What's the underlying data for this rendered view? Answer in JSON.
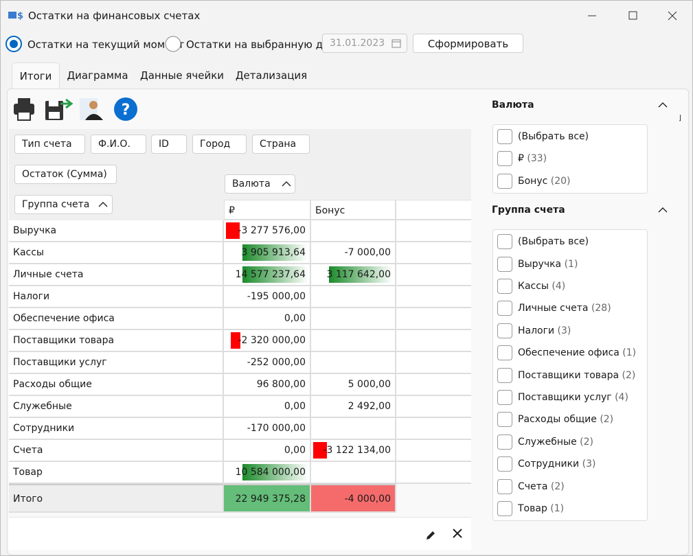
{
  "window": {
    "title": "Остатки на финансовых счетах"
  },
  "toolbar": {
    "mode_current": "Остатки на текущий момент",
    "mode_date": "Остатки на выбранную дату",
    "date": "31.01.2023",
    "button": "Сформировать"
  },
  "tabs": [
    "Итоги",
    "Диаграмма",
    "Данные ячейки",
    "Детализация"
  ],
  "pivot": {
    "filter_fields": [
      "Тип счета",
      "Ф.И.О.",
      "ID",
      "Город",
      "Страна"
    ],
    "data_field": "Остаток (Сумма)",
    "column_field": "Валюта",
    "row_field": "Группа счета",
    "columns": [
      "₽",
      "Бонус"
    ],
    "rows": [
      {
        "label": "Выручка",
        "cells": [
          "-3 277 576,00",
          null
        ]
      },
      {
        "label": "Кассы",
        "cells": [
          "3 905 913,64",
          "-7 000,00"
        ]
      },
      {
        "label": "Личные счета",
        "cells": [
          "14 577 237,64",
          "3 117 642,00"
        ]
      },
      {
        "label": "Налоги",
        "cells": [
          "-195 000,00",
          null
        ]
      },
      {
        "label": "Обеспечение офиса",
        "cells": [
          "0,00",
          null
        ]
      },
      {
        "label": "Поставщики товара",
        "cells": [
          "-2 320 000,00",
          null
        ]
      },
      {
        "label": "Поставщики услуг",
        "cells": [
          "-252 000,00",
          null
        ]
      },
      {
        "label": "Расходы общие",
        "cells": [
          "96 800,00",
          "5 000,00"
        ]
      },
      {
        "label": "Служебные",
        "cells": [
          "0,00",
          "2 492,00"
        ]
      },
      {
        "label": "Сотрудники",
        "cells": [
          "-170 000,00",
          null
        ]
      },
      {
        "label": "Счета",
        "cells": [
          "0,00",
          "-3 122 134,00"
        ]
      },
      {
        "label": "Товар",
        "cells": [
          "10 584 000,00",
          null
        ]
      }
    ],
    "total": {
      "label": "Итого",
      "cells": [
        "22 949 375,28",
        "-4 000,00"
      ]
    }
  },
  "filters": [
    {
      "title": "Валюта",
      "items": [
        {
          "label": "(Выбрать все)"
        },
        {
          "label": "₽",
          "count": "(33)"
        },
        {
          "label": "Бонус",
          "count": "(20)"
        }
      ]
    },
    {
      "title": "Группа счета",
      "items": [
        {
          "label": "(Выбрать все)"
        },
        {
          "label": "Выручка",
          "count": "(1)"
        },
        {
          "label": "Кассы",
          "count": "(4)"
        },
        {
          "label": "Личные счета",
          "count": "(28)"
        },
        {
          "label": "Налоги",
          "count": "(3)"
        },
        {
          "label": "Обеспечение офиса",
          "count": "(1)"
        },
        {
          "label": "Поставщики товара",
          "count": "(2)"
        },
        {
          "label": "Поставщики услуг",
          "count": "(4)"
        },
        {
          "label": "Расходы общие",
          "count": "(2)"
        },
        {
          "label": "Служебные",
          "count": "(2)"
        },
        {
          "label": "Сотрудники",
          "count": "(3)"
        },
        {
          "label": "Счета",
          "count": "(2)"
        },
        {
          "label": "Товар",
          "count": "(1)"
        }
      ]
    }
  ]
}
